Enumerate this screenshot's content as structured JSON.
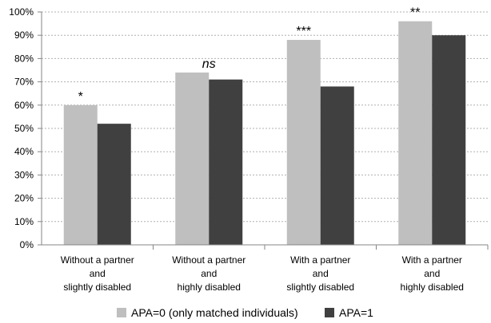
{
  "chart_data": {
    "type": "bar",
    "title": "",
    "xlabel": "",
    "ylabel": "",
    "ylim": [
      0,
      100
    ],
    "yticks": [
      "0%",
      "10%",
      "20%",
      "30%",
      "40%",
      "50%",
      "60%",
      "70%",
      "80%",
      "90%",
      "100%"
    ],
    "grid": "horizontal dashed",
    "legend_position": "bottom",
    "categories": [
      [
        "Without a partner",
        "and",
        "slightly disabled"
      ],
      [
        "Without a partner",
        "and",
        "highly disabled"
      ],
      [
        "With a partner",
        "and",
        "slightly disabled"
      ],
      [
        "With a partner",
        "and",
        "highly disabled"
      ]
    ],
    "series": [
      {
        "name": "APA=0 (only matched individuals)",
        "color": "#bfbfbf",
        "values": [
          60,
          74,
          88,
          96
        ]
      },
      {
        "name": "APA=1",
        "color": "#404040",
        "values": [
          52,
          71,
          68,
          90
        ]
      }
    ],
    "annotations": [
      "*",
      "ns",
      "***",
      "**"
    ]
  }
}
